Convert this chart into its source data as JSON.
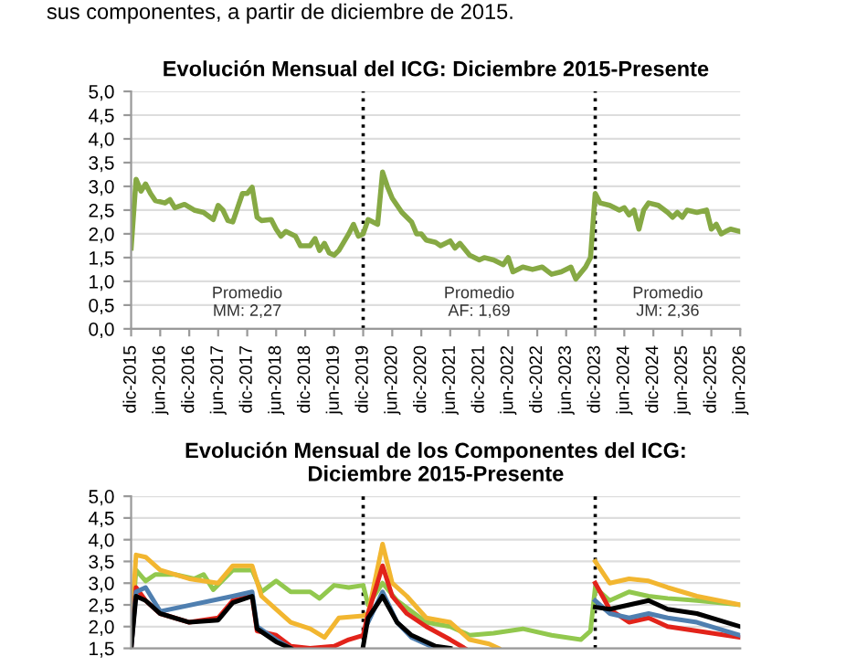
{
  "chart_data": [
    {
      "type": "line",
      "title": "Evolución Mensual del ICG: Diciembre 2015-Presente",
      "annotations": [
        "sus componentes, a partir de diciembre de 2015.",
        "Promedio\nMM: 2,27",
        "Promedio\nAF: 1,69",
        "Promedio\nJM: 2,36"
      ],
      "series": [
        {
          "color": "#86a944",
          "x": [
            "2015-12",
            "2016-01",
            "2016-02",
            "2016-03",
            "2016-04",
            "2016-05",
            "2016-07",
            "2016-08",
            "2016-09",
            "2016-11",
            "2017-01",
            "2017-03",
            "2017-05",
            "2017-06",
            "2017-07",
            "2017-08",
            "2017-09",
            "2017-11",
            "2017-12",
            "2018-01",
            "2018-02",
            "2018-03",
            "2018-05",
            "2018-06",
            "2018-07",
            "2018-08",
            "2018-10",
            "2018-11",
            "2019-01",
            "2019-02",
            "2019-03",
            "2019-04",
            "2019-05",
            "2019-06",
            "2019-07",
            "2019-09",
            "2019-10",
            "2019-11",
            "2019-12",
            "2020-01",
            "2020-02",
            "2020-03",
            "2020-04",
            "2020-05",
            "2020-06",
            "2020-08",
            "2020-10",
            "2020-11",
            "2020-12",
            "2021-01",
            "2021-03",
            "2021-04",
            "2021-06",
            "2021-07",
            "2021-08",
            "2021-10",
            "2021-12",
            "2022-01",
            "2022-03",
            "2022-05",
            "2022-06",
            "2022-07",
            "2022-09",
            "2022-11",
            "2023-01",
            "2023-03",
            "2023-05",
            "2023-07",
            "2023-08",
            "2023-10",
            "2023-11",
            "2023-12",
            "2024-01",
            "2024-03",
            "2024-05",
            "2024-06",
            "2024-07",
            "2024-08",
            "2024-09",
            "2024-10",
            "2024-11",
            "2025-01",
            "2025-03",
            "2025-04",
            "2025-05",
            "2025-06",
            "2025-07",
            "2025-09",
            "2025-11",
            "2025-12",
            "2026-01",
            "2026-02",
            "2026-03",
            "2026-04",
            "2026-06"
          ],
          "values": [
            1.7,
            3.15,
            2.9,
            3.05,
            2.85,
            2.7,
            2.65,
            2.72,
            2.55,
            2.62,
            2.5,
            2.45,
            2.3,
            2.6,
            2.5,
            2.28,
            2.25,
            2.85,
            2.85,
            2.98,
            2.35,
            2.28,
            2.3,
            2.1,
            1.95,
            2.05,
            1.95,
            1.75,
            1.75,
            1.9,
            1.65,
            1.8,
            1.6,
            1.55,
            1.65,
            2.0,
            2.2,
            1.95,
            2.0,
            2.3,
            2.25,
            2.2,
            3.3,
            3.0,
            2.75,
            2.45,
            2.25,
            2.0,
            2.0,
            1.87,
            1.82,
            1.75,
            1.85,
            1.7,
            1.8,
            1.55,
            1.45,
            1.5,
            1.45,
            1.35,
            1.5,
            1.2,
            1.3,
            1.25,
            1.3,
            1.15,
            1.2,
            1.3,
            1.05,
            1.3,
            1.5,
            2.85,
            2.65,
            2.6,
            2.5,
            2.55,
            2.4,
            2.5,
            2.1,
            2.5,
            2.65,
            2.6,
            2.45,
            2.35,
            2.45,
            2.35,
            2.5,
            2.45,
            2.5,
            2.1,
            2.2,
            2.0,
            2.05,
            2.1,
            2.05
          ]
        }
      ],
      "ref_lines": [
        {
          "axis": "x",
          "value": "2019-12",
          "line_style": "dotted",
          "color": "#000000"
        },
        {
          "axis": "x",
          "value": "2023-12",
          "line_style": "dotted",
          "color": "#000000"
        }
      ],
      "xlim": [
        "2015-12",
        "2026-06"
      ],
      "xticks": [
        {
          "value": "2015-12",
          "label": "dic-2015"
        },
        {
          "value": "2016-06",
          "label": "jun-2016"
        },
        {
          "value": "2016-12",
          "label": "dic-2016"
        },
        {
          "value": "2017-06",
          "label": "jun-2017"
        },
        {
          "value": "2017-12",
          "label": "dic-2017"
        },
        {
          "value": "2018-06",
          "label": "jun-2018"
        },
        {
          "value": "2018-12",
          "label": "dic-2018"
        },
        {
          "value": "2019-06",
          "label": "jun-2019"
        },
        {
          "value": "2019-12",
          "label": "dic-2019"
        },
        {
          "value": "2020-06",
          "label": "jun-2020"
        },
        {
          "value": "2020-12",
          "label": "dic-2020"
        },
        {
          "value": "2021-06",
          "label": "jun-2021"
        },
        {
          "value": "2021-12",
          "label": "dic-2021"
        },
        {
          "value": "2022-06",
          "label": "jun-2022"
        },
        {
          "value": "2022-12",
          "label": "dic-2022"
        },
        {
          "value": "2023-06",
          "label": "jun-2023"
        },
        {
          "value": "2023-12",
          "label": "dic-2023"
        },
        {
          "value": "2024-06",
          "label": "jun-2024"
        },
        {
          "value": "2024-12",
          "label": "dic-2024"
        },
        {
          "value": "2025-06",
          "label": "jun-2025"
        },
        {
          "value": "2025-12",
          "label": "dic-2025"
        },
        {
          "value": "2026-06",
          "label": "jun-2026"
        }
      ],
      "ylim": [
        0,
        5
      ],
      "yticks": [
        {
          "value": 0,
          "label": "0,0"
        },
        {
          "value": 0.5,
          "label": "0,5"
        },
        {
          "value": 1,
          "label": "1,0"
        },
        {
          "value": 1.5,
          "label": "1,5"
        },
        {
          "value": 2,
          "label": "2,0"
        },
        {
          "value": 2.5,
          "label": "2,5"
        },
        {
          "value": 3,
          "label": "3,0"
        },
        {
          "value": 3.5,
          "label": "3,5"
        },
        {
          "value": 4,
          "label": "4,0"
        },
        {
          "value": 4.5,
          "label": "4,5"
        },
        {
          "value": 5,
          "label": "5,0"
        }
      ],
      "grid": "y",
      "legend": false
    },
    {
      "type": "line",
      "title": "Evolución Mensual de los Componentes del ICG:\nDiciembre 2015-Presente",
      "series": [
        {
          "color": "#92c84e",
          "x": [
            "2015-12",
            "2016-01",
            "2016-03",
            "2016-05",
            "2016-09",
            "2017-01",
            "2017-03",
            "2017-05",
            "2017-09",
            "2018-01",
            "2018-03",
            "2018-06",
            "2018-09",
            "2019-01",
            "2019-03",
            "2019-06",
            "2019-09",
            "2019-12",
            "2020-01",
            "2020-04",
            "2020-07",
            "2021-01",
            "2021-06",
            "2021-10",
            "2022-03",
            "2022-09",
            "2023-03",
            "2023-09",
            "2023-11",
            "2023-12",
            "2024-03",
            "2024-07",
            "2024-11",
            "2025-03",
            "2025-09",
            "2026-06"
          ],
          "values": [
            1.9,
            3.3,
            3.05,
            3.2,
            3.2,
            3.1,
            3.2,
            2.85,
            3.3,
            3.3,
            2.8,
            3.05,
            2.8,
            2.8,
            2.65,
            2.95,
            2.9,
            2.95,
            2.5,
            3.0,
            2.6,
            2.1,
            2.0,
            1.8,
            1.85,
            1.95,
            1.8,
            1.7,
            1.9,
            2.9,
            2.6,
            2.8,
            2.7,
            2.65,
            2.6,
            2.5
          ]
        },
        {
          "color": "#f2b630",
          "x": [
            "2015-12",
            "2016-01",
            "2016-03",
            "2016-06",
            "2016-12",
            "2017-06",
            "2017-09",
            "2018-01",
            "2018-03",
            "2018-06",
            "2018-09",
            "2019-01",
            "2019-04",
            "2019-07",
            "2019-12",
            "2020-01",
            "2020-04",
            "2020-06",
            "2020-09",
            "2021-01",
            "2021-06",
            "2021-10",
            "2022-02",
            "2022-04",
            "2023-11",
            "2023-12",
            "2024-03",
            "2024-07",
            "2024-11",
            "2025-03",
            "2025-09",
            "2026-06"
          ],
          "values": [
            1.9,
            3.65,
            3.6,
            3.3,
            3.1,
            3.0,
            3.4,
            3.4,
            2.7,
            2.4,
            2.1,
            1.95,
            1.75,
            2.2,
            2.25,
            2.3,
            3.9,
            3.0,
            2.7,
            2.2,
            2.1,
            1.7,
            1.6,
            1.5,
            null,
            3.5,
            3.0,
            3.1,
            3.05,
            2.9,
            2.7,
            2.5
          ]
        },
        {
          "color": "#e2231a",
          "x": [
            "2015-12",
            "2016-01",
            "2016-03",
            "2016-06",
            "2016-12",
            "2017-06",
            "2017-09",
            "2018-01",
            "2018-02",
            "2018-06",
            "2018-09",
            "2019-01",
            "2019-06",
            "2019-09",
            "2019-12",
            "2020-01",
            "2020-04",
            "2020-06",
            "2020-09",
            "2021-01",
            "2021-06",
            "2021-09",
            "2023-11",
            "2023-12",
            "2024-03",
            "2024-07",
            "2024-11",
            "2025-03",
            "2025-09",
            "2026-06"
          ],
          "values": [
            1.5,
            2.9,
            2.6,
            2.3,
            2.1,
            2.2,
            2.6,
            2.7,
            1.9,
            1.8,
            1.55,
            1.5,
            1.55,
            1.7,
            1.8,
            2.3,
            3.4,
            2.7,
            2.3,
            2.0,
            1.7,
            1.5,
            null,
            3.0,
            2.4,
            2.1,
            2.2,
            2.0,
            1.9,
            1.75
          ]
        },
        {
          "color": "#4f7fb0",
          "x": [
            "2015-12",
            "2016-01",
            "2016-03",
            "2016-06",
            "2017-09",
            "2018-01",
            "2018-02",
            "2018-06",
            "2018-09",
            "2019-12",
            "2020-01",
            "2020-04",
            "2020-07",
            "2020-10",
            "2021-03",
            "2023-11",
            "2023-12",
            "2024-03",
            "2024-07",
            "2024-11",
            "2025-03",
            "2025-09",
            "2026-06"
          ],
          "values": [
            1.5,
            2.8,
            2.9,
            2.35,
            2.7,
            2.8,
            2.0,
            1.7,
            1.5,
            null,
            2.1,
            2.8,
            2.1,
            1.75,
            1.5,
            null,
            2.6,
            2.3,
            2.2,
            2.3,
            2.2,
            2.1,
            1.8
          ]
        },
        {
          "color": "#000000",
          "x": [
            "2015-12",
            "2016-01",
            "2016-03",
            "2016-06",
            "2016-12",
            "2017-06",
            "2017-09",
            "2018-01",
            "2018-02",
            "2018-06",
            "2018-09",
            "2019-09",
            "2019-12",
            "2020-01",
            "2020-04",
            "2020-07",
            "2020-10",
            "2021-03",
            "2021-06",
            "2023-11",
            "2023-12",
            "2024-03",
            "2024-07",
            "2024-11",
            "2025-03",
            "2025-09",
            "2026-06"
          ],
          "values": [
            1.5,
            2.7,
            2.6,
            2.3,
            2.1,
            2.15,
            2.55,
            2.7,
            1.95,
            1.65,
            1.5,
            null,
            1.55,
            2.2,
            2.7,
            2.1,
            1.8,
            1.55,
            1.5,
            null,
            2.45,
            2.4,
            2.5,
            2.6,
            2.4,
            2.3,
            2.0
          ]
        }
      ],
      "ref_lines": [
        {
          "axis": "x",
          "value": "2019-12",
          "line_style": "dotted",
          "color": "#000000"
        },
        {
          "axis": "x",
          "value": "2023-12",
          "line_style": "dotted",
          "color": "#000000"
        }
      ],
      "xlim": [
        "2015-12",
        "2026-06"
      ],
      "ylim": [
        1.5,
        5
      ],
      "yticks": [
        {
          "value": 1.5,
          "label": "1,5"
        },
        {
          "value": 2,
          "label": "2,0"
        },
        {
          "value": 2.5,
          "label": "2,5"
        },
        {
          "value": 3,
          "label": "3,0"
        },
        {
          "value": 3.5,
          "label": "3,5"
        },
        {
          "value": 4,
          "label": "4,0"
        },
        {
          "value": 4.5,
          "label": "4,5"
        },
        {
          "value": 5,
          "label": "5,0"
        }
      ],
      "tick_labels": "y",
      "grid": "y",
      "legend": false
    }
  ]
}
